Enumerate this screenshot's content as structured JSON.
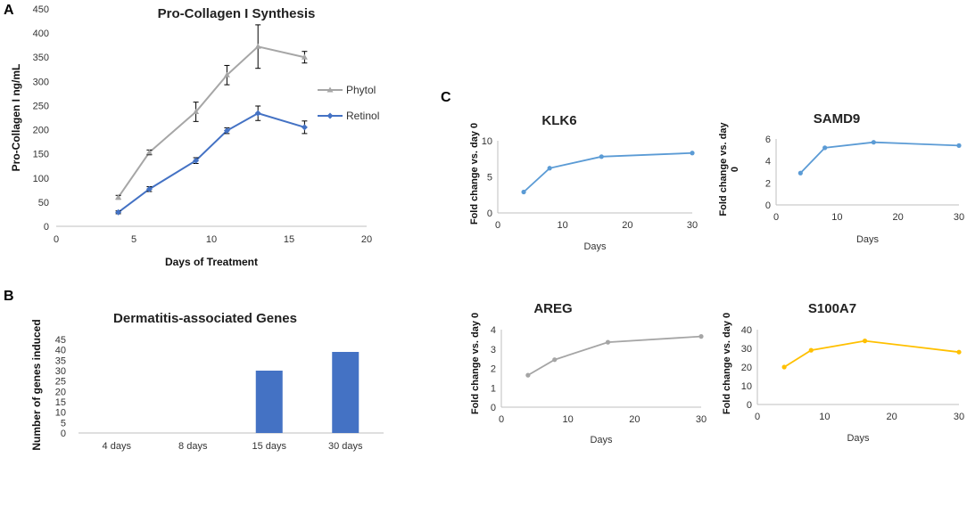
{
  "panel_letters": {
    "a": "A",
    "b": "B",
    "c": "C"
  },
  "colors": {
    "phytol": "#a6a6a6",
    "retinol": "#4472c4",
    "bar": "#4472c4",
    "klk6": "#5b9bd5",
    "samd9": "#5b9bd5",
    "areg": "#a5a5a5",
    "s100a7": "#ffc000"
  },
  "chart_data": [
    {
      "id": "A",
      "type": "line",
      "title": "Pro-Collagen I Synthesis",
      "xlabel": "Days of Treatment",
      "ylabel": "Pro-Collagen I ng/mL",
      "xlim": [
        0,
        20
      ],
      "ylim": [
        0,
        450
      ],
      "xticks": [
        0,
        5,
        10,
        15,
        20
      ],
      "yticks": [
        0,
        50,
        100,
        150,
        200,
        250,
        300,
        350,
        400,
        450
      ],
      "legend_position": "right",
      "series": [
        {
          "name": "Phytol",
          "x": [
            4,
            6,
            9,
            11,
            13,
            16
          ],
          "y": [
            60,
            153,
            237,
            313,
            372,
            350
          ],
          "err": [
            4,
            5,
            20,
            20,
            45,
            12
          ]
        },
        {
          "name": "Retinol",
          "x": [
            4,
            6,
            9,
            11,
            13,
            16
          ],
          "y": [
            29,
            77,
            136,
            198,
            234,
            205
          ],
          "err": [
            3,
            5,
            6,
            6,
            15,
            13
          ]
        }
      ]
    },
    {
      "id": "B",
      "type": "bar",
      "title": "Dermatitis-associated Genes",
      "xlabel": "",
      "ylabel": "Number of genes induced",
      "categories": [
        "4 days",
        "8 days",
        "15 days",
        "30 days"
      ],
      "values": [
        0,
        0,
        30,
        39
      ],
      "ylim": [
        0,
        45
      ],
      "yticks": [
        0,
        5,
        10,
        15,
        20,
        25,
        30,
        35,
        40,
        45
      ]
    },
    {
      "id": "KLK6",
      "type": "line",
      "title": "KLK6",
      "xlabel": "Days",
      "ylabel": "Fold change vs. day 0",
      "xlim": [
        0,
        30
      ],
      "ylim": [
        0,
        10
      ],
      "xticks": [
        0,
        10,
        20,
        30
      ],
      "yticks": [
        0,
        5,
        10
      ],
      "series": [
        {
          "name": "KLK6",
          "x": [
            4,
            8,
            16,
            30
          ],
          "y": [
            2.9,
            6.2,
            7.8,
            8.3
          ]
        }
      ]
    },
    {
      "id": "SAMD9",
      "type": "line",
      "title": "SAMD9",
      "xlabel": "Days",
      "ylabel": "Fold change vs. day",
      "ylabel2": "0",
      "xlim": [
        0,
        30
      ],
      "ylim": [
        0,
        6
      ],
      "xticks": [
        0,
        10,
        20,
        30
      ],
      "yticks": [
        0,
        2,
        4,
        6
      ],
      "series": [
        {
          "name": "SAMD9",
          "x": [
            4,
            8,
            16,
            30
          ],
          "y": [
            2.9,
            5.2,
            5.7,
            5.4
          ]
        }
      ]
    },
    {
      "id": "AREG",
      "type": "line",
      "title": "AREG",
      "xlabel": "Days",
      "ylabel": "Fold change vs. day 0",
      "xlim": [
        0,
        30
      ],
      "ylim": [
        0,
        4
      ],
      "xticks": [
        0,
        10,
        20,
        30
      ],
      "yticks": [
        0,
        1,
        2,
        3,
        4
      ],
      "series": [
        {
          "name": "AREG",
          "x": [
            4,
            8,
            16,
            30
          ],
          "y": [
            1.65,
            2.45,
            3.35,
            3.65
          ]
        }
      ]
    },
    {
      "id": "S100A7",
      "type": "line",
      "title": "S100A7",
      "xlabel": "Days",
      "ylabel": "Fold change vs. day 0",
      "xlim": [
        0,
        30
      ],
      "ylim": [
        0,
        40
      ],
      "xticks": [
        0,
        10,
        20,
        30
      ],
      "yticks": [
        0,
        10,
        20,
        30,
        40
      ],
      "series": [
        {
          "name": "S100A7",
          "x": [
            4,
            8,
            16,
            30
          ],
          "y": [
            20,
            29,
            34,
            28
          ]
        }
      ]
    }
  ]
}
